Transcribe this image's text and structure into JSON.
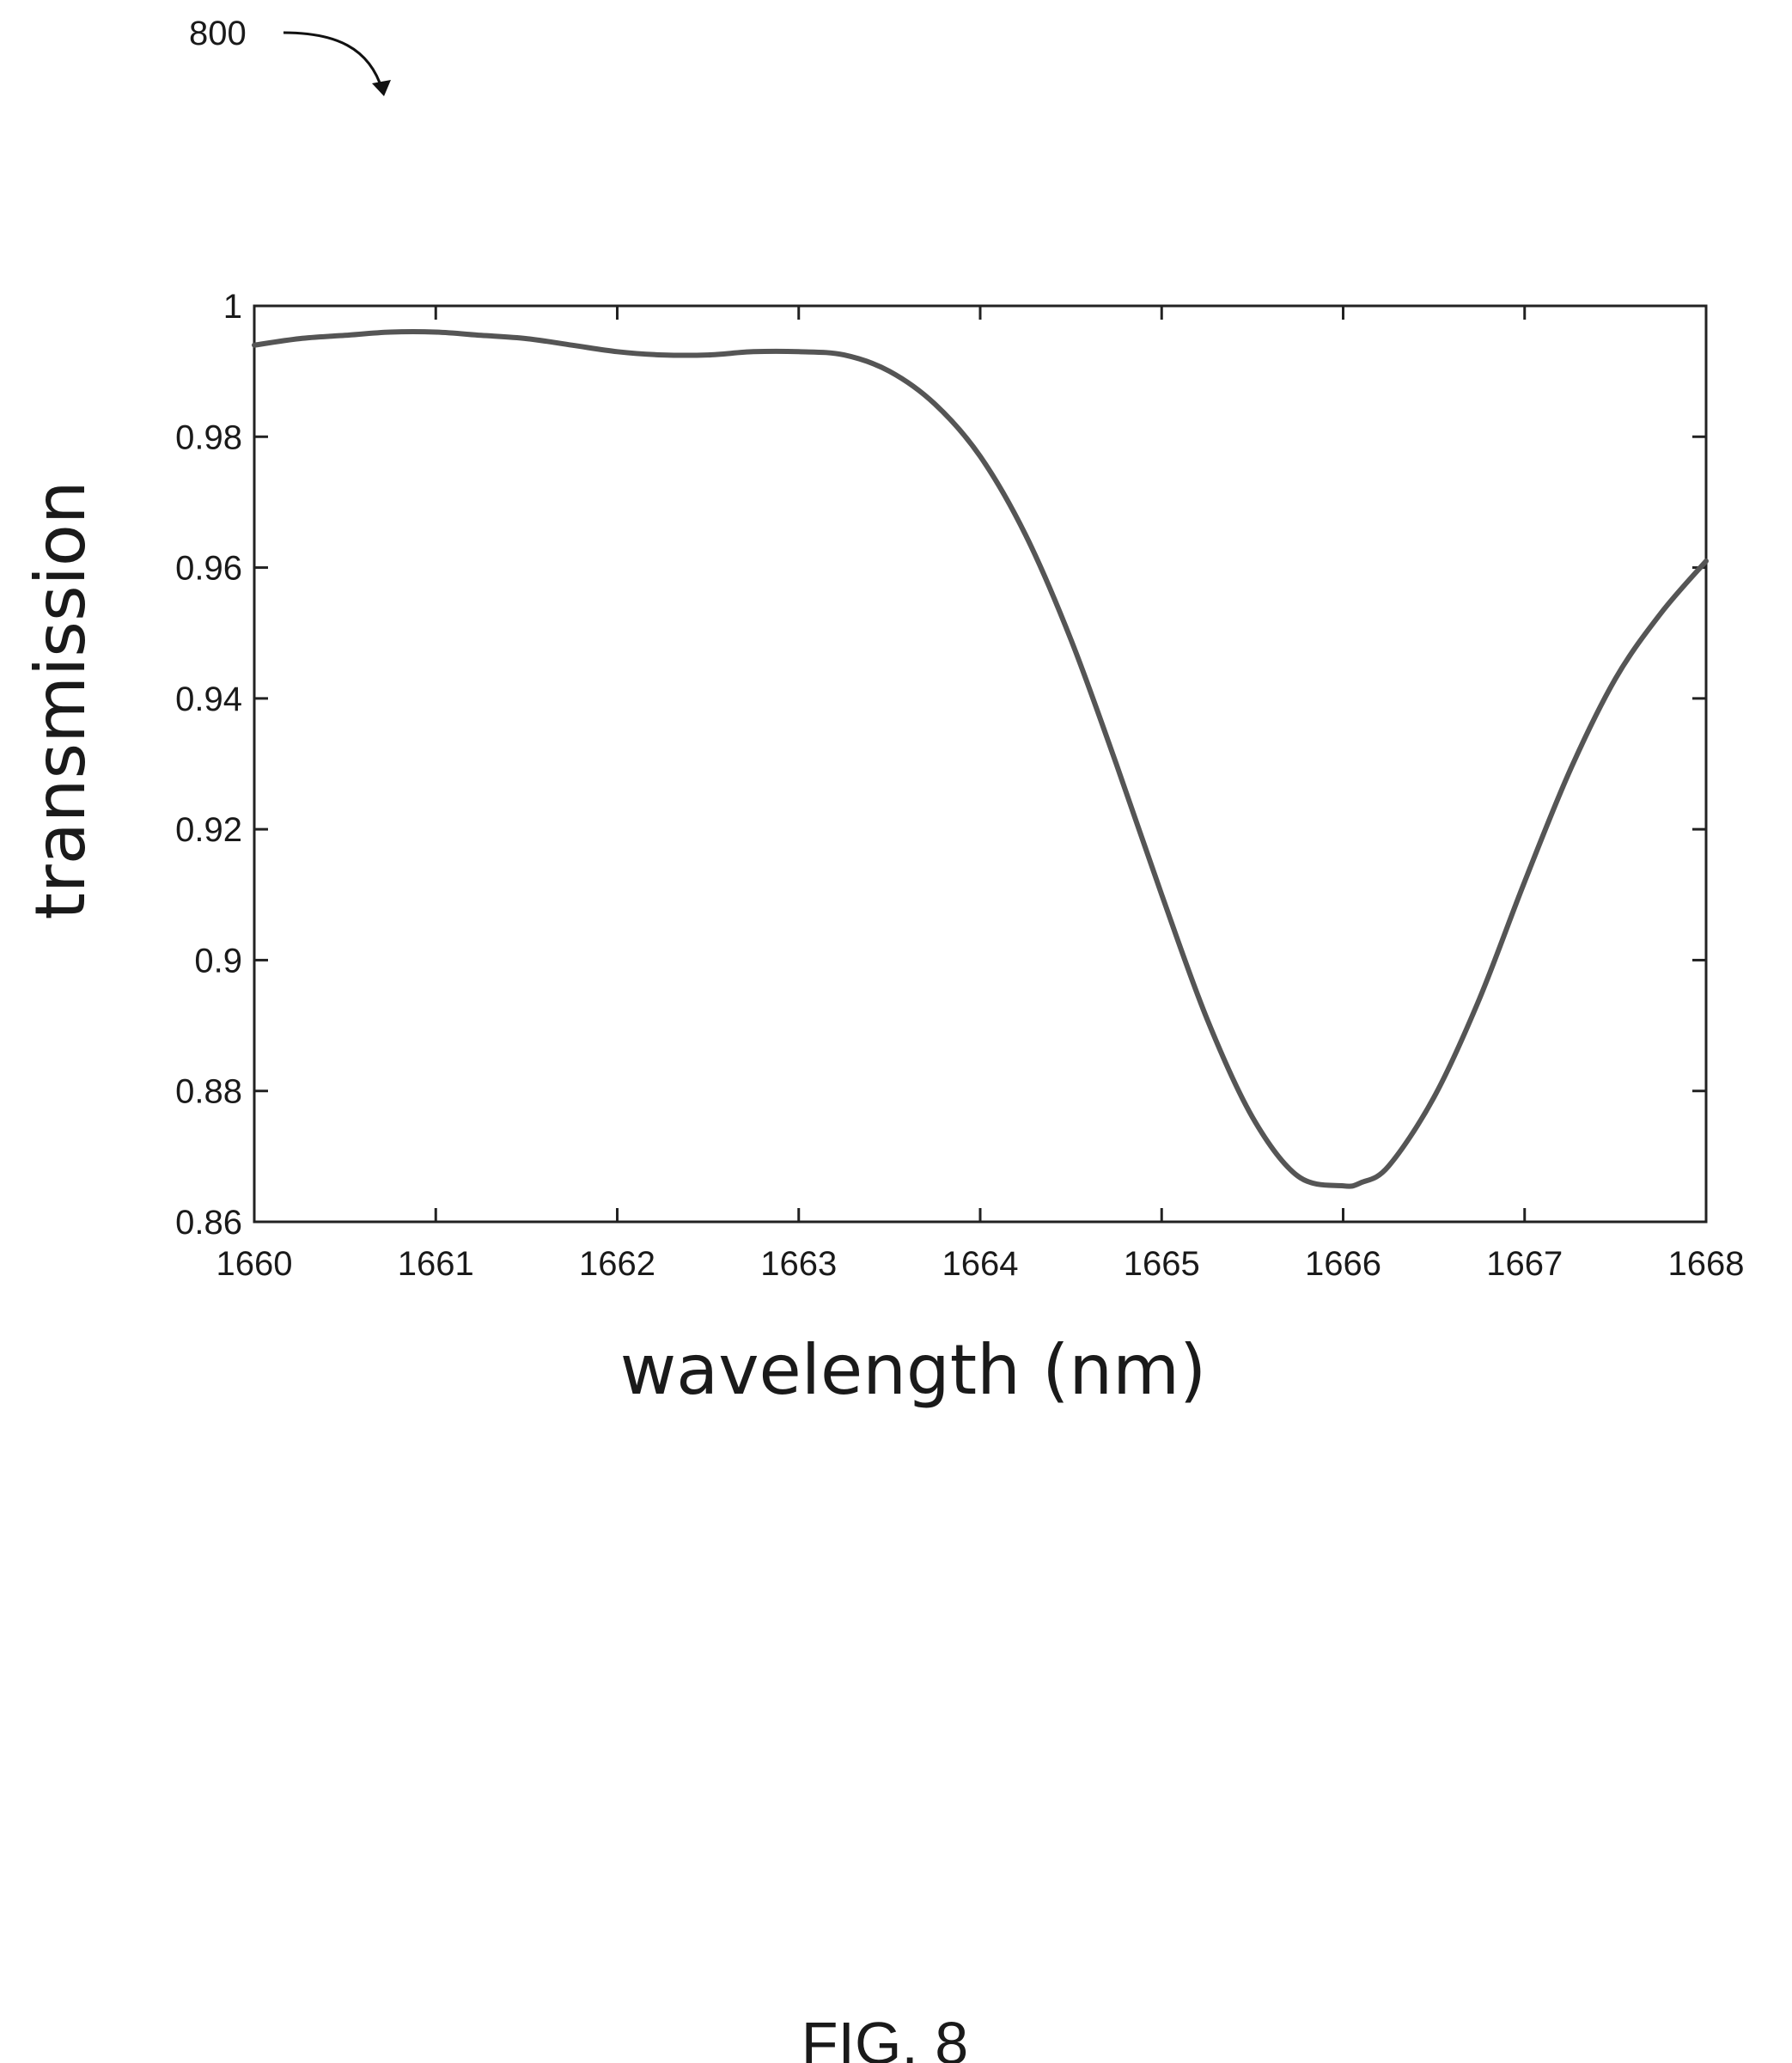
{
  "figure": {
    "reference_numeral": "800",
    "caption": "FIG. 8"
  },
  "chart_data": {
    "type": "line",
    "title": "",
    "xlabel": "wavelength (nm)",
    "ylabel": "transmission",
    "xlim": [
      1660,
      1668
    ],
    "ylim": [
      0.86,
      1.0
    ],
    "x_ticks": [
      1660,
      1661,
      1662,
      1663,
      1664,
      1665,
      1666,
      1667,
      1668
    ],
    "x_tick_labels": [
      "1660",
      "1661",
      "1662",
      "1663",
      "1664",
      "1665",
      "1666",
      "1667",
      "1668"
    ],
    "y_ticks": [
      0.86,
      0.88,
      0.9,
      0.92,
      0.94,
      0.96,
      0.98,
      1.0
    ],
    "y_tick_labels": [
      "0.86",
      "0.88",
      "0.9",
      "0.92",
      "0.94",
      "0.96",
      "0.98",
      "1"
    ],
    "grid": false,
    "line_color": "#555555",
    "series": [
      {
        "x": [
          1660.0,
          1660.25,
          1660.5,
          1660.75,
          1661.0,
          1661.25,
          1661.5,
          1661.75,
          1662.0,
          1662.25,
          1662.5,
          1662.75,
          1663.0,
          1663.25,
          1663.5,
          1663.75,
          1664.0,
          1664.25,
          1664.5,
          1664.75,
          1665.0,
          1665.25,
          1665.5,
          1665.75,
          1666.0,
          1666.1,
          1666.25,
          1666.5,
          1666.75,
          1667.0,
          1667.25,
          1667.5,
          1667.75,
          1668.0
        ],
        "y": [
          0.994,
          0.995,
          0.9955,
          0.996,
          0.996,
          0.9955,
          0.995,
          0.994,
          0.993,
          0.9925,
          0.9925,
          0.993,
          0.993,
          0.9925,
          0.99,
          0.985,
          0.977,
          0.965,
          0.949,
          0.93,
          0.91,
          0.891,
          0.876,
          0.867,
          0.8655,
          0.866,
          0.8685,
          0.879,
          0.894,
          0.912,
          0.929,
          0.943,
          0.953,
          0.961
        ]
      }
    ]
  }
}
